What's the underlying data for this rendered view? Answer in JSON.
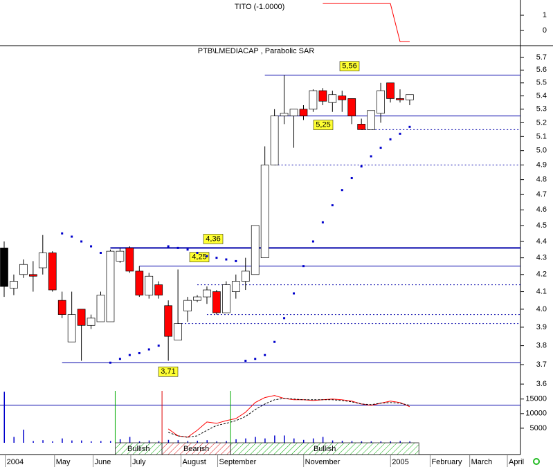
{
  "chart_data": [
    {
      "type": "line",
      "title": "TITO (-1.0000)",
      "x": [
        33,
        40,
        41,
        42
      ],
      "color": "#ff0000",
      "values": [
        1.77,
        1.77,
        -0.73,
        -0.73
      ],
      "ylim": [
        -0.95,
        2.0
      ],
      "yticks": [
        1,
        0
      ]
    },
    {
      "type": "candlestick",
      "title": "PTB\\LMEDIACAP , Parabolic SAR",
      "log_scale": true,
      "ylim": [
        3.59,
        5.79
      ],
      "yticks": [
        3.6,
        3.7,
        3.8,
        3.9,
        {
          "value": 4,
          "label": "4.0"
        },
        4.1,
        4.2,
        4.3,
        4.4,
        4.5,
        4.6,
        4.7,
        4.8,
        4.9,
        {
          "value": 5,
          "label": "5.0"
        },
        5.1,
        5.2,
        5.3,
        5.4,
        5.5,
        5.6,
        5.7
      ],
      "open": [
        4.36,
        4.12,
        4.2,
        4.2,
        4.24,
        4.33,
        4.05,
        3.82,
        4.0,
        3.91,
        3.93,
        3.93,
        4.28,
        4.36,
        4.22,
        4.08,
        4.14,
        4.02,
        3.83,
        3.99,
        4.05,
        4.07,
        4.1,
        3.98,
        4.1,
        4.16,
        4.2,
        4.3,
        4.9,
        5.25,
        5.25,
        5.3,
        5.3,
        5.44,
        5.35,
        5.4,
        5.38,
        5.19,
        5.15,
        5.27,
        5.5,
        5.38,
        5.37
      ],
      "high": [
        4.4,
        4.2,
        4.29,
        4.28,
        4.44,
        4.34,
        4.1,
        4.1,
        4.0,
        3.97,
        4.1,
        4.35,
        4.36,
        4.37,
        4.25,
        4.21,
        4.16,
        4.05,
        4.23,
        4.07,
        4.08,
        4.13,
        4.11,
        4.16,
        4.2,
        4.3,
        4.5,
        5.03,
        5.3,
        5.56,
        5.3,
        5.33,
        5.45,
        5.46,
        5.44,
        5.44,
        5.38,
        5.23,
        5.29,
        5.5,
        5.5,
        5.45,
        5.41
      ],
      "low": [
        4.07,
        4.08,
        4.18,
        4.1,
        4.2,
        4.1,
        3.95,
        3.82,
        3.72,
        3.89,
        3.93,
        3.93,
        4.27,
        4.21,
        4.07,
        4.06,
        4.06,
        3.72,
        3.83,
        3.93,
        4.04,
        4.03,
        3.97,
        3.98,
        4.06,
        4.11,
        4.2,
        4.3,
        4.9,
        5.19,
        5.02,
        5.22,
        5.28,
        5.33,
        5.28,
        5.28,
        5.19,
        5.15,
        5.15,
        5.2,
        5.35,
        5.35,
        5.33
      ],
      "close": [
        4.13,
        4.16,
        4.26,
        4.19,
        4.33,
        4.11,
        3.97,
        3.97,
        3.91,
        3.95,
        4.08,
        4.34,
        4.34,
        4.22,
        4.08,
        4.19,
        4.08,
        3.85,
        3.92,
        4.05,
        4.07,
        4.11,
        3.98,
        4.14,
        4.16,
        4.22,
        4.5,
        4.9,
        5.25,
        5.27,
        5.3,
        5.25,
        5.44,
        5.36,
        5.41,
        5.37,
        5.25,
        5.15,
        5.29,
        5.44,
        5.38,
        5.37,
        5.41
      ],
      "colors": [
        "#000000",
        "#ffffff",
        "#ffffff",
        "#ff0000",
        "#ffffff",
        "#ff0000",
        "#ff0000",
        "#ffffff",
        "#ff0000",
        "#ffffff",
        "#ffffff",
        "#ffffff",
        "#ffffff",
        "#ff0000",
        "#ff0000",
        "#ffffff",
        "#ff0000",
        "#ff0000",
        "#ffffff",
        "#ffffff",
        "#ffffff",
        "#ffffff",
        "#ff0000",
        "#ffffff",
        "#ffffff",
        "#ffffff",
        "#ffffff",
        "#ffffff",
        "#ffffff",
        "#ffffff",
        "#ffffff",
        "#ff0000",
        "#ffffff",
        "#ff0000",
        "#ffffff",
        "#ff0000",
        "#ff0000",
        "#ff0000",
        "#ffffff",
        "#ffffff",
        "#ff0000",
        "#ff0000",
        "#ffffff"
      ],
      "sar": {
        "color": "#0000cc",
        "values": [
          null,
          null,
          null,
          null,
          null,
          null,
          4.45,
          4.43,
          4.4,
          4.37,
          4.33,
          3.71,
          3.73,
          3.75,
          3.76,
          3.78,
          3.8,
          4.37,
          4.36,
          4.35,
          4.33,
          4.31,
          4.3,
          4.29,
          4.28,
          3.72,
          3.73,
          3.75,
          3.82,
          3.95,
          4.09,
          4.25,
          4.4,
          4.52,
          4.63,
          4.73,
          4.81,
          4.89,
          4.96,
          5.02,
          5.08,
          5.12,
          5.17
        ]
      },
      "level_color": "#0000aa",
      "levels": [
        {
          "value": 5.56,
          "label": "5,56",
          "from": 27
        },
        {
          "value": 5.25,
          "label": "5,25",
          "from": 28
        },
        {
          "value": 4.36,
          "label": "4,36",
          "from": 11
        },
        {
          "value": 4.25,
          "label": "4,25",
          "from": 14
        },
        {
          "value": 3.71,
          "label": "3,71",
          "from": 6
        }
      ],
      "dashed_levels": [
        {
          "value": 5.15,
          "from": 37
        },
        {
          "value": 4.9,
          "from": 28
        },
        {
          "value": 4.14,
          "from": 20
        },
        {
          "value": 3.97,
          "from": 21
        },
        {
          "value": 3.92,
          "from": 18
        }
      ]
    },
    {
      "type": "volume",
      "color": "#0000cc",
      "values": [
        17500,
        2000,
        4500,
        600,
        900,
        500,
        1500,
        800,
        800,
        500,
        600,
        600,
        1200,
        2000,
        500,
        800,
        600,
        1000,
        900,
        600,
        700,
        900,
        500,
        600,
        1200,
        1500,
        2000,
        1500,
        2500,
        2500,
        1500,
        1000,
        1500,
        2000,
        800,
        700,
        600,
        500,
        500,
        500,
        500,
        600,
        500
      ],
      "ylim": [
        0,
        18500
      ],
      "yticks": [
        15000,
        10000,
        5000
      ],
      "level": 12900,
      "series": [
        {
          "color": "#ff0000",
          "values": [
            null,
            null,
            null,
            null,
            null,
            null,
            null,
            null,
            null,
            null,
            null,
            null,
            null,
            null,
            null,
            null,
            null,
            4760,
            2380,
            1900,
            4300,
            7140,
            6660,
            7600,
            8300,
            10470,
            13800,
            15500,
            16200,
            15200,
            14750,
            14750,
            14500,
            14750,
            15000,
            14750,
            14280,
            13300,
            12850,
            13570,
            14280,
            13800,
            12380
          ]
        },
        {
          "color": "#000000",
          "dashed": true,
          "values": [
            null,
            null,
            null,
            null,
            null,
            null,
            null,
            null,
            null,
            null,
            null,
            null,
            null,
            null,
            null,
            null,
            null,
            3570,
            2380,
            1900,
            2380,
            4280,
            5950,
            6660,
            7600,
            9000,
            11400,
            13300,
            14750,
            15200,
            14990,
            14750,
            14750,
            14750,
            14750,
            14500,
            14040,
            13300,
            13090,
            13570,
            13800,
            13570,
            12860
          ]
        }
      ],
      "signals": [
        {
          "label": "Bullish",
          "from": 11.5,
          "to": 16.35,
          "color": "#00aa00"
        },
        {
          "label": "Bearish",
          "from": 16.35,
          "to": 23.45,
          "color": "#dd0000"
        },
        {
          "label": "Bullish",
          "from": 23.45,
          "to": 42.95,
          "color": "#00aa00"
        }
      ],
      "xlim": [
        -0.43,
        53.33
      ],
      "xticks": [
        {
          "value": -0.1,
          "label": "2004"
        },
        {
          "value": 5.0,
          "label": "May"
        },
        {
          "value": 9.0,
          "label": "June"
        },
        {
          "value": 12.9,
          "label": "July"
        },
        {
          "value": 18.1,
          "label": "August"
        },
        {
          "value": 21.9,
          "label": "September"
        },
        {
          "value": 30.8,
          "label": "November"
        },
        {
          "value": 39.8,
          "label": "2005"
        },
        {
          "value": 43.9,
          "label": "February"
        },
        {
          "value": 48.0,
          "label": "March"
        },
        {
          "value": 51.9,
          "label": "April"
        }
      ]
    }
  ]
}
